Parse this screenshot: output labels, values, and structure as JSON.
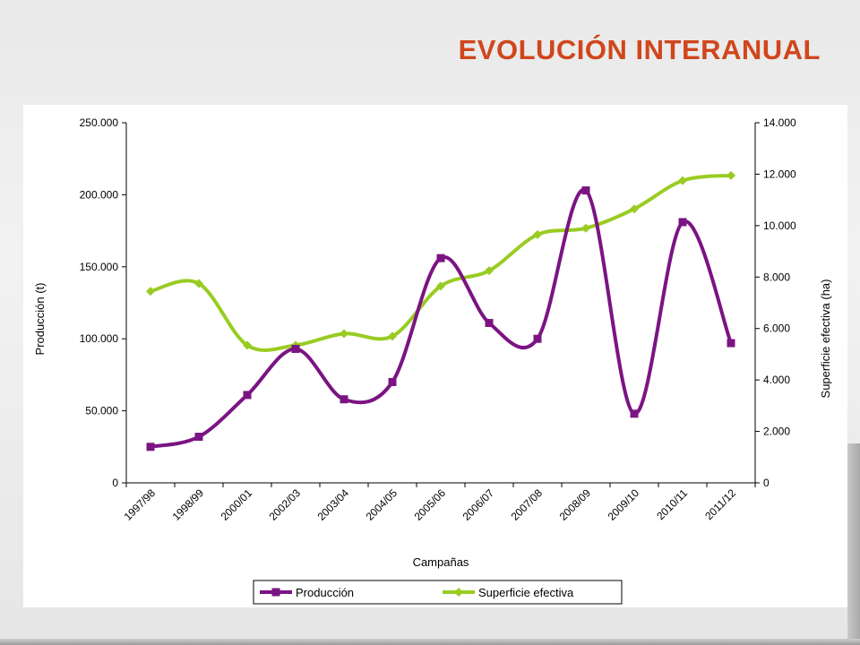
{
  "slide": {
    "title": "EVOLUCIÓN INTERANUAL"
  },
  "colors": {
    "title": "#d0461c",
    "produccion": "#7b1483",
    "superficie": "#99cc22"
  },
  "chart_data": {
    "type": "line",
    "x_title": "Campañas",
    "y_left_title": "Producción (t)",
    "y_right_title": "Superficie efectiva (ha)",
    "categories": [
      "1997/98",
      "1998/99",
      "2000/01",
      "2002/03",
      "2003/04",
      "2004/05",
      "2005/06",
      "2006/07",
      "2007/08",
      "2008/09",
      "2009/10",
      "2010/11",
      "2011/12"
    ],
    "y_left_range": [
      0,
      250000
    ],
    "y_left_ticks": [
      "0",
      "50.000",
      "100.000",
      "150.000",
      "200.000",
      "250.000"
    ],
    "y_right_range": [
      0,
      14000
    ],
    "y_right_ticks": [
      "0",
      "2.000",
      "4.000",
      "6.000",
      "8.000",
      "10.000",
      "12.000",
      "14.000"
    ],
    "series": [
      {
        "name": "Producción",
        "axis": "left",
        "marker": "square",
        "values": [
          25000,
          32000,
          61000,
          93000,
          58000,
          70000,
          156000,
          111000,
          100000,
          203000,
          48000,
          181000,
          97000
        ]
      },
      {
        "name": "Superficie efectiva",
        "axis": "right",
        "marker": "diamond",
        "values": [
          7450,
          7750,
          5350,
          5350,
          5800,
          5700,
          7650,
          8250,
          9650,
          9900,
          10650,
          11750,
          11950
        ]
      }
    ],
    "legend": "bottom",
    "grid": false,
    "smooth": true
  }
}
